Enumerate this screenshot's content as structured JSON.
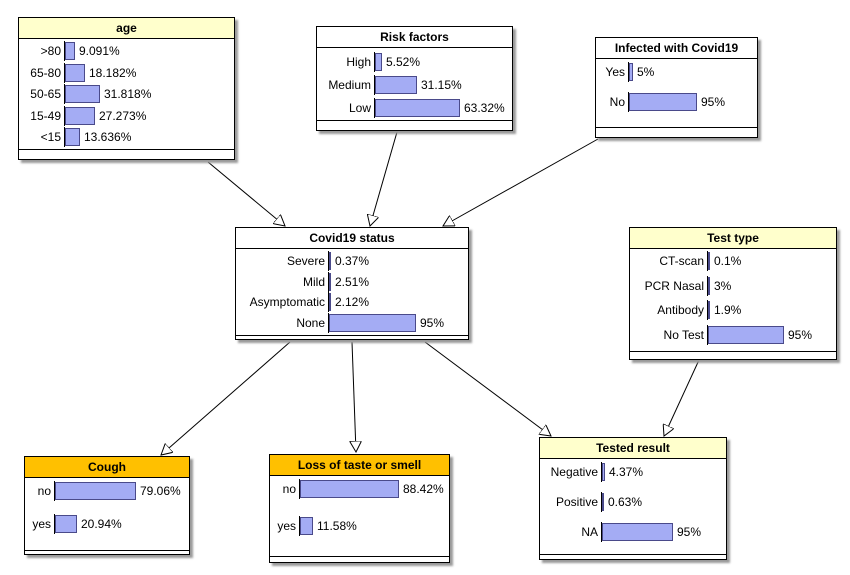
{
  "colors": {
    "bar_fill": "#a4acf4",
    "query_title": "#ffc000",
    "evidence_title": "#ffffcc"
  },
  "nodes": {
    "age": {
      "title": "age",
      "states": [
        {
          "label": ">80",
          "value_text": "9.091%",
          "p": 0.09091
        },
        {
          "label": "65-80",
          "value_text": "18.182%",
          "p": 0.18182
        },
        {
          "label": "50-65",
          "value_text": "31.818%",
          "p": 0.31818
        },
        {
          "label": "15-49",
          "value_text": "27.273%",
          "p": 0.27273
        },
        {
          "label": "<15",
          "value_text": "13.636%",
          "p": 0.13636
        }
      ]
    },
    "risk": {
      "title": "Risk factors",
      "states": [
        {
          "label": "High",
          "value_text": "5.52%",
          "p": 0.0552
        },
        {
          "label": "Medium",
          "value_text": "31.15%",
          "p": 0.3115
        },
        {
          "label": "Low",
          "value_text": "63.32%",
          "p": 0.6332
        }
      ]
    },
    "infected": {
      "title": "Infected with Covid19",
      "states": [
        {
          "label": "Yes",
          "value_text": "5%",
          "p": 0.05
        },
        {
          "label": "No",
          "value_text": "95%",
          "p": 0.95
        }
      ]
    },
    "status": {
      "title": "Covid19 status",
      "states": [
        {
          "label": "Severe",
          "value_text": "0.37%",
          "p": 0.0037
        },
        {
          "label": "Mild",
          "value_text": "2.51%",
          "p": 0.0251
        },
        {
          "label": "Asymptomatic",
          "value_text": "2.12%",
          "p": 0.0212
        },
        {
          "label": "None",
          "value_text": "95%",
          "p": 0.95
        }
      ]
    },
    "testtype": {
      "title": "Test type",
      "states": [
        {
          "label": "CT-scan",
          "value_text": "0.1%",
          "p": 0.001
        },
        {
          "label": "PCR Nasal",
          "value_text": "3%",
          "p": 0.03
        },
        {
          "label": "Antibody",
          "value_text": "1.9%",
          "p": 0.019
        },
        {
          "label": "No Test",
          "value_text": "95%",
          "p": 0.95
        }
      ]
    },
    "cough": {
      "title": "Cough",
      "states": [
        {
          "label": "no",
          "value_text": "79.06%",
          "p": 0.7906
        },
        {
          "label": "yes",
          "value_text": "20.94%",
          "p": 0.2094
        }
      ]
    },
    "taste": {
      "title": "Loss of taste or smell",
      "states": [
        {
          "label": "no",
          "value_text": "88.42%",
          "p": 0.8842
        },
        {
          "label": "yes",
          "value_text": "11.58%",
          "p": 0.1158
        }
      ]
    },
    "tested": {
      "title": "Tested result",
      "states": [
        {
          "label": "Negative",
          "value_text": "4.37%",
          "p": 0.0437
        },
        {
          "label": "Positive",
          "value_text": "0.63%",
          "p": 0.0063
        },
        {
          "label": "NA",
          "value_text": "95%",
          "p": 0.95
        }
      ]
    }
  }
}
